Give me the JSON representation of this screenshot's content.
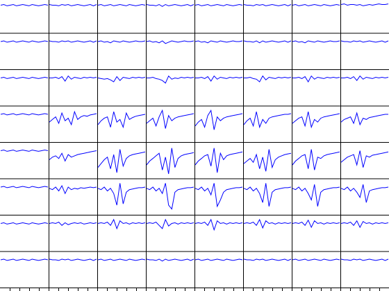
{
  "chart_data": {
    "type": "line",
    "color": "#0000ff",
    "ylim": [
      -44,
      8
    ],
    "panels": [
      [
        [
          0,
          1,
          -1,
          0,
          1,
          -1,
          0,
          1,
          0,
          -1,
          1,
          0,
          -1,
          0,
          1,
          0
        ],
        [
          1,
          0,
          0,
          -1,
          1,
          0,
          1,
          -1,
          0,
          1,
          0,
          -1,
          0,
          1,
          -1,
          1
        ],
        [
          0,
          1,
          -1,
          0,
          1,
          -1,
          0,
          1,
          0,
          -1,
          1,
          0,
          -1,
          0,
          1,
          0
        ],
        [
          1,
          0,
          0,
          -1,
          1,
          -2,
          1,
          -1,
          0,
          1,
          0,
          -1,
          0,
          1,
          -1,
          1
        ],
        [
          0,
          1,
          -1,
          0,
          1,
          -1,
          0,
          1,
          0,
          -1,
          1,
          0,
          -1,
          0,
          1,
          0
        ],
        [
          1,
          0,
          0,
          -1,
          1,
          0,
          1,
          -1,
          0,
          1,
          0,
          -1,
          0,
          1,
          -1,
          1
        ],
        [
          0,
          1,
          -1,
          0,
          1,
          -1,
          0,
          1,
          0,
          -1,
          1,
          0,
          -1,
          0,
          1,
          0
        ],
        [
          1,
          2,
          0,
          1,
          1,
          0,
          1,
          -1,
          0,
          1,
          0,
          1,
          2,
          1,
          1,
          2
        ]
      ],
      [
        [
          0,
          1,
          -1,
          0,
          1,
          -1,
          0,
          1,
          0,
          -1,
          1,
          0,
          -1,
          0,
          1,
          0
        ],
        [
          1,
          0,
          0,
          -1,
          1,
          0,
          1,
          -1,
          0,
          1,
          0,
          -1,
          0,
          1,
          -1,
          1
        ],
        [
          0,
          1,
          -1,
          0,
          -2,
          1,
          0,
          -1,
          1,
          0,
          -1,
          0,
          1,
          0,
          0,
          1
        ],
        [
          0,
          1,
          -1,
          0,
          -2,
          1,
          -3,
          -1,
          1,
          0,
          -1,
          0,
          1,
          0,
          0,
          1
        ],
        [
          0,
          1,
          -1,
          0,
          -2,
          1,
          0,
          -1,
          1,
          0,
          -1,
          0,
          1,
          0,
          0,
          1
        ],
        [
          1,
          0,
          0,
          -1,
          1,
          -2,
          1,
          -1,
          0,
          1,
          0,
          -1,
          0,
          1,
          -1,
          1
        ],
        [
          0,
          1,
          -1,
          0,
          -2,
          1,
          0,
          -1,
          1,
          0,
          -1,
          0,
          1,
          0,
          0,
          1
        ],
        [
          1,
          0,
          0,
          -1,
          1,
          0,
          1,
          -1,
          0,
          1,
          0,
          -1,
          0,
          1,
          -1,
          1
        ]
      ],
      [
        [
          0,
          1,
          -1,
          0,
          1,
          -1,
          0,
          1,
          0,
          -1,
          1,
          0,
          -1,
          0,
          1,
          0
        ],
        [
          0,
          0,
          1,
          -1,
          2,
          -5,
          3,
          -2,
          1,
          0,
          -1,
          1,
          0,
          1,
          0,
          1
        ],
        [
          0,
          -1,
          -2,
          -1,
          -3,
          -6,
          2,
          -4,
          1,
          0,
          -1,
          1,
          0,
          1,
          0,
          1
        ],
        [
          0,
          0,
          1,
          -1,
          -2,
          -4,
          -8,
          3,
          -2,
          0,
          -1,
          1,
          0,
          1,
          0,
          1
        ],
        [
          0,
          0,
          1,
          -1,
          2,
          -5,
          3,
          -2,
          1,
          0,
          -1,
          1,
          0,
          1,
          0,
          1
        ],
        [
          0,
          0,
          1,
          -1,
          -2,
          -6,
          3,
          -3,
          1,
          0,
          -1,
          1,
          0,
          1,
          0,
          1
        ],
        [
          0,
          0,
          1,
          -1,
          2,
          -6,
          3,
          -2,
          1,
          0,
          -1,
          1,
          0,
          1,
          0,
          1
        ],
        [
          0,
          0,
          1,
          -1,
          2,
          -4,
          3,
          -2,
          1,
          0,
          -1,
          1,
          0,
          1,
          0,
          1
        ]
      ],
      [
        [
          0,
          1,
          -1,
          0,
          1,
          -1,
          0,
          1,
          0,
          -1,
          1,
          0,
          -1,
          0,
          1,
          0
        ],
        [
          -12,
          -8,
          -4,
          -14,
          2,
          -10,
          -6,
          -16,
          4,
          -8,
          -4,
          -2,
          -3,
          -1,
          0,
          1
        ],
        [
          -16,
          -10,
          -6,
          -4,
          -20,
          4,
          -12,
          -8,
          -20,
          2,
          -8,
          -5,
          -3,
          -2,
          -1,
          0
        ],
        [
          -14,
          -10,
          -6,
          -18,
          -4,
          6,
          -22,
          -2,
          -10,
          -6,
          -4,
          -3,
          -2,
          -1,
          0,
          1
        ],
        [
          -18,
          -12,
          -8,
          -20,
          -2,
          6,
          -24,
          -4,
          -10,
          -6,
          -4,
          -3,
          -2,
          -1,
          0,
          1
        ],
        [
          -16,
          -10,
          -6,
          -18,
          4,
          -20,
          -8,
          -14,
          -6,
          -4,
          -3,
          -2,
          -1,
          0,
          0,
          1
        ],
        [
          -14,
          -10,
          -6,
          -4,
          -18,
          4,
          -20,
          -8,
          -12,
          -6,
          -4,
          -3,
          -2,
          -1,
          0,
          1
        ],
        [
          -12,
          -8,
          -6,
          -4,
          -14,
          2,
          -16,
          -6,
          -8,
          -5,
          -4,
          -3,
          -2,
          -1,
          0,
          0
        ]
      ],
      [
        [
          0,
          1,
          -1,
          0,
          1,
          -1,
          0,
          1,
          0,
          -1,
          1,
          0,
          -1,
          0,
          1,
          0
        ],
        [
          -14,
          -10,
          -8,
          -12,
          -4,
          -16,
          -6,
          -10,
          -8,
          -6,
          -5,
          -4,
          -3,
          -2,
          -1,
          0
        ],
        [
          -26,
          -20,
          -14,
          -10,
          -28,
          -6,
          -34,
          2,
          -24,
          -12,
          -8,
          -6,
          -5,
          -4,
          -3,
          -2
        ],
        [
          -22,
          -16,
          -12,
          -8,
          -4,
          -30,
          -10,
          -36,
          4,
          -26,
          -12,
          -8,
          -6,
          -5,
          -4,
          -3
        ],
        [
          -22,
          -16,
          -12,
          -8,
          -6,
          -24,
          4,
          -34,
          -4,
          -14,
          -8,
          -6,
          -5,
          -4,
          -3,
          -2
        ],
        [
          -20,
          -16,
          -12,
          -18,
          -6,
          -28,
          -10,
          -32,
          2,
          -26,
          -14,
          -10,
          -8,
          -6,
          -5,
          -4
        ],
        [
          -22,
          -16,
          -12,
          -8,
          -6,
          -28,
          2,
          -30,
          -10,
          -12,
          -8,
          -6,
          -5,
          -4,
          -3,
          -2
        ],
        [
          -18,
          -14,
          -10,
          -8,
          -6,
          -22,
          0,
          -26,
          -8,
          -10,
          -7,
          -6,
          -5,
          -4,
          -3,
          -2
        ]
      ],
      [
        [
          0,
          1,
          -1,
          0,
          1,
          -1,
          0,
          1,
          0,
          -1,
          1,
          0,
          -1,
          0,
          1,
          0
        ],
        [
          -2,
          -4,
          0,
          -6,
          2,
          -10,
          0,
          -4,
          -2,
          -3,
          -1,
          -2,
          -1,
          0,
          -1,
          0
        ],
        [
          -2,
          -4,
          0,
          -6,
          -2,
          -10,
          -28,
          6,
          -26,
          -8,
          -4,
          -3,
          -2,
          -1,
          -1,
          0
        ],
        [
          -2,
          -4,
          0,
          -6,
          -2,
          -10,
          6,
          -28,
          -34,
          -8,
          -4,
          -3,
          -2,
          -1,
          -1,
          0
        ],
        [
          -2,
          -4,
          0,
          -6,
          -2,
          -12,
          6,
          -30,
          -20,
          -8,
          -4,
          -3,
          -2,
          -1,
          -1,
          0
        ],
        [
          -2,
          -4,
          0,
          -6,
          -2,
          -10,
          -24,
          6,
          -30,
          -8,
          -4,
          -3,
          -2,
          -1,
          -1,
          0
        ],
        [
          -2,
          -4,
          0,
          -6,
          -2,
          -10,
          -20,
          4,
          -30,
          -8,
          -4,
          -3,
          -2,
          -1,
          -1,
          0
        ],
        [
          -2,
          -4,
          0,
          -6,
          -2,
          -8,
          -16,
          4,
          -24,
          -6,
          -4,
          -3,
          -2,
          -1,
          -1,
          0
        ]
      ],
      [
        [
          0,
          1,
          -1,
          0,
          1,
          -1,
          0,
          1,
          0,
          -1,
          1,
          0,
          -1,
          0,
          1,
          0
        ],
        [
          0,
          1,
          0,
          2,
          -3,
          1,
          -2,
          0,
          1,
          0,
          1,
          -1,
          0,
          1,
          0,
          1
        ],
        [
          0,
          1,
          0,
          2,
          -3,
          6,
          -8,
          4,
          0,
          1,
          -1,
          1,
          0,
          1,
          0,
          1
        ],
        [
          0,
          1,
          0,
          2,
          -3,
          -8,
          6,
          -4,
          0,
          1,
          -1,
          1,
          0,
          1,
          0,
          1
        ],
        [
          0,
          1,
          0,
          2,
          -3,
          6,
          -10,
          4,
          0,
          1,
          -1,
          1,
          0,
          1,
          0,
          1
        ],
        [
          0,
          1,
          0,
          2,
          -3,
          6,
          -7,
          4,
          0,
          1,
          -1,
          1,
          0,
          1,
          0,
          1
        ],
        [
          0,
          1,
          0,
          2,
          -3,
          5,
          -6,
          4,
          0,
          1,
          -1,
          1,
          0,
          1,
          0,
          1
        ],
        [
          0,
          1,
          0,
          2,
          -3,
          4,
          -6,
          3,
          0,
          1,
          -1,
          1,
          0,
          1,
          0,
          1
        ]
      ],
      [
        [
          0,
          1,
          -1,
          0,
          1,
          -1,
          0,
          1,
          0,
          -1,
          1,
          0,
          -1,
          0,
          1,
          0
        ],
        [
          1,
          0,
          0,
          -1,
          1,
          0,
          1,
          -1,
          0,
          1,
          0,
          -1,
          0,
          1,
          -1,
          1
        ],
        [
          0,
          1,
          -1,
          0,
          1,
          -1,
          0,
          1,
          0,
          -1,
          1,
          0,
          -1,
          0,
          1,
          0
        ],
        [
          1,
          0,
          0,
          -1,
          1,
          -2,
          1,
          -1,
          0,
          1,
          0,
          -1,
          0,
          1,
          -1,
          1
        ],
        [
          0,
          1,
          -1,
          0,
          1,
          -1,
          0,
          1,
          0,
          -1,
          1,
          0,
          -1,
          0,
          1,
          0
        ],
        [
          1,
          0,
          0,
          -1,
          1,
          0,
          1,
          -1,
          0,
          1,
          0,
          -1,
          0,
          1,
          -1,
          1
        ],
        [
          0,
          1,
          -1,
          0,
          1,
          -1,
          0,
          1,
          0,
          -1,
          1,
          0,
          -1,
          0,
          1,
          0
        ],
        [
          1,
          0,
          0,
          -1,
          1,
          0,
          1,
          -1,
          0,
          1,
          0,
          -1,
          0,
          1,
          -1,
          1
        ]
      ]
    ]
  }
}
